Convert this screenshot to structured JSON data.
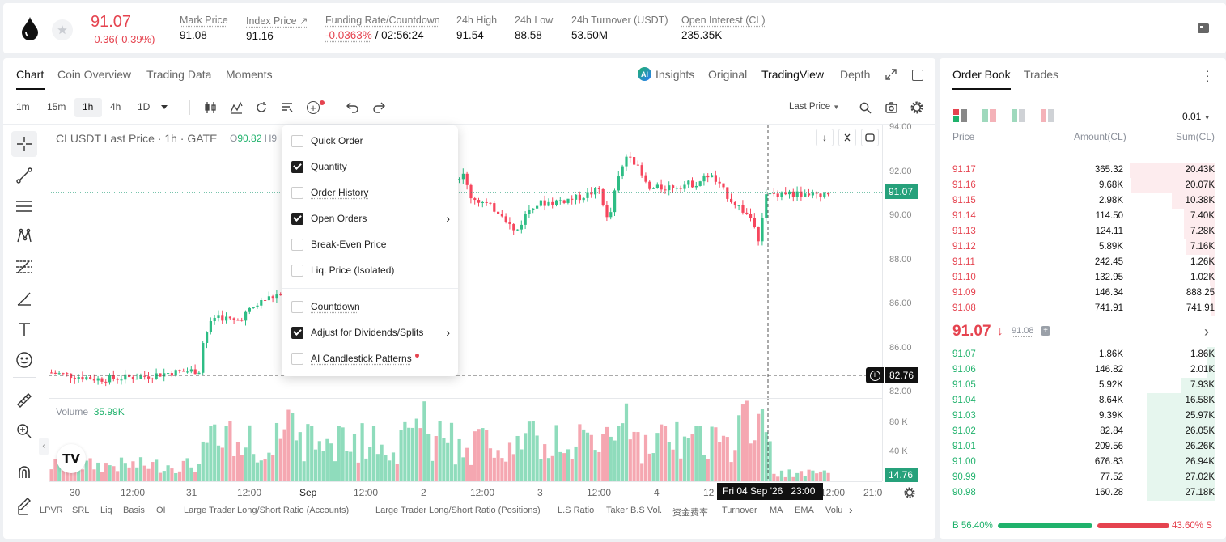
{
  "ticker": {
    "price": "91.07",
    "change": "-0.36(-0.39%)",
    "stats": [
      {
        "label": "Mark Price",
        "value": "91.08"
      },
      {
        "label": "Index Price ↗",
        "value": "91.16"
      },
      {
        "label": "Funding Rate/Countdown",
        "value_red": "-0.0363%",
        "value": "/ 02:56:24"
      },
      {
        "label": "24h High",
        "value": "91.54"
      },
      {
        "label": "24h Low",
        "value": "88.58"
      },
      {
        "label": "24h Turnover (USDT)",
        "value": "53.50M"
      },
      {
        "label": "Open Interest (CL)",
        "value": "235.35K"
      }
    ]
  },
  "chart_tabs": [
    "Chart",
    "Coin Overview",
    "Trading Data",
    "Moments"
  ],
  "view_tabs": [
    "Insights",
    "Original",
    "TradingView",
    "Depth"
  ],
  "timeframes": [
    "1m",
    "15m",
    "1h",
    "4h",
    "1D"
  ],
  "price_type": "Last Price",
  "chart_title": "CLUSDT Last Price · 1h · GATE",
  "chart_ohlc": {
    "o_label": "O",
    "o_value": "90.82",
    "h_label": "H9"
  },
  "volume": {
    "label": "Volume",
    "value": "35.99K"
  },
  "price_axis": [
    "94.00",
    "92.00",
    "90.00",
    "88.00",
    "86.00",
    "84.00",
    "82.00"
  ],
  "volume_axis": [
    "80 K",
    "40 K"
  ],
  "last_price_tag": "91.07",
  "crosshair_price_tag": "82.76",
  "volume_tag": "14.76",
  "time_axis": [
    "30",
    "12:00",
    "31",
    "12:00",
    "Sep",
    "12:00",
    "2",
    "12:00",
    "3",
    "12:00",
    "4",
    "12",
    "12:00",
    "21:0"
  ],
  "crosshair_time": "Fri 04 Sep '26   23:00",
  "menu": [
    {
      "label": "Quick Order",
      "checked": false,
      "arrow": false
    },
    {
      "label": "Quantity",
      "checked": true,
      "arrow": false
    },
    {
      "label": "Order History",
      "checked": false,
      "arrow": false
    },
    {
      "label": "Open Orders",
      "checked": true,
      "arrow": true
    },
    {
      "label": "Break-Even Price",
      "checked": false,
      "arrow": false
    },
    {
      "label": "Liq. Price (Isolated)",
      "checked": false,
      "arrow": false
    },
    {
      "label": "Countdown",
      "checked": false,
      "arrow": false
    },
    {
      "label": "Adjust for Dividends/Splits",
      "checked": true,
      "arrow": true
    },
    {
      "label": "AI Candlestick Patterns",
      "checked": false,
      "arrow": false
    }
  ],
  "indicators": [
    "LPVR",
    "SRL",
    "Liq",
    "Basis",
    "OI",
    "Large Trader Long/Short Ratio (Accounts)",
    "Large Trader Long/Short Ratio (Positions)",
    "L.S Ratio",
    "Taker B.S Vol.",
    "资金费率",
    "Turnover",
    "MA",
    "EMA",
    "Volu"
  ],
  "orderbook": {
    "tabs": [
      "Order Book",
      "Trades"
    ],
    "precision": "0.01",
    "headers": [
      "Price",
      "Amount(CL)",
      "Sum(CL)"
    ],
    "asks": [
      [
        "91.17",
        "365.32",
        "20.43K",
        0.75
      ],
      [
        "91.16",
        "9.68K",
        "20.07K",
        0.74
      ],
      [
        "91.15",
        "2.98K",
        "10.38K",
        0.38
      ],
      [
        "91.14",
        "114.50",
        "7.40K",
        0.27
      ],
      [
        "91.13",
        "124.11",
        "7.28K",
        0.27
      ],
      [
        "91.12",
        "5.89K",
        "7.16K",
        0.26
      ],
      [
        "91.11",
        "242.45",
        "1.26K",
        0.05
      ],
      [
        "91.10",
        "132.95",
        "1.02K",
        0.04
      ],
      [
        "91.09",
        "146.34",
        "888.25",
        0.03
      ],
      [
        "91.08",
        "741.91",
        "741.91",
        0.03
      ]
    ],
    "mid_price": "91.07",
    "mark": "91.08",
    "bids": [
      [
        "91.07",
        "1.86K",
        "1.86K",
        0.07,
        0
      ],
      [
        "91.06",
        "146.82",
        "2.01K",
        0.07,
        0
      ],
      [
        "91.05",
        "5.92K",
        "7.93K",
        0.29,
        0
      ],
      [
        "91.04",
        "8.64K",
        "16.58K",
        0.6,
        0
      ],
      [
        "91.03",
        "9.39K",
        "25.97K",
        0.6,
        0
      ],
      [
        "91.02",
        "82.84",
        "26.05K",
        0.6,
        0.07
      ],
      [
        "91.01",
        "209.56",
        "26.26K",
        0.6,
        0
      ],
      [
        "91.00",
        "676.83",
        "26.94K",
        0.6,
        0
      ],
      [
        "90.99",
        "77.52",
        "27.02K",
        0.6,
        0
      ],
      [
        "90.98",
        "160.28",
        "27.18K",
        0.6,
        0
      ]
    ],
    "buy_ratio": "B 56.40%",
    "sell_ratio": "43.60% S",
    "buy_pct": 56.4
  },
  "colors": {
    "up": "#20b26c",
    "down": "#e5434f",
    "up_candle": "#2ebd85",
    "down_candle": "#f6465d"
  }
}
